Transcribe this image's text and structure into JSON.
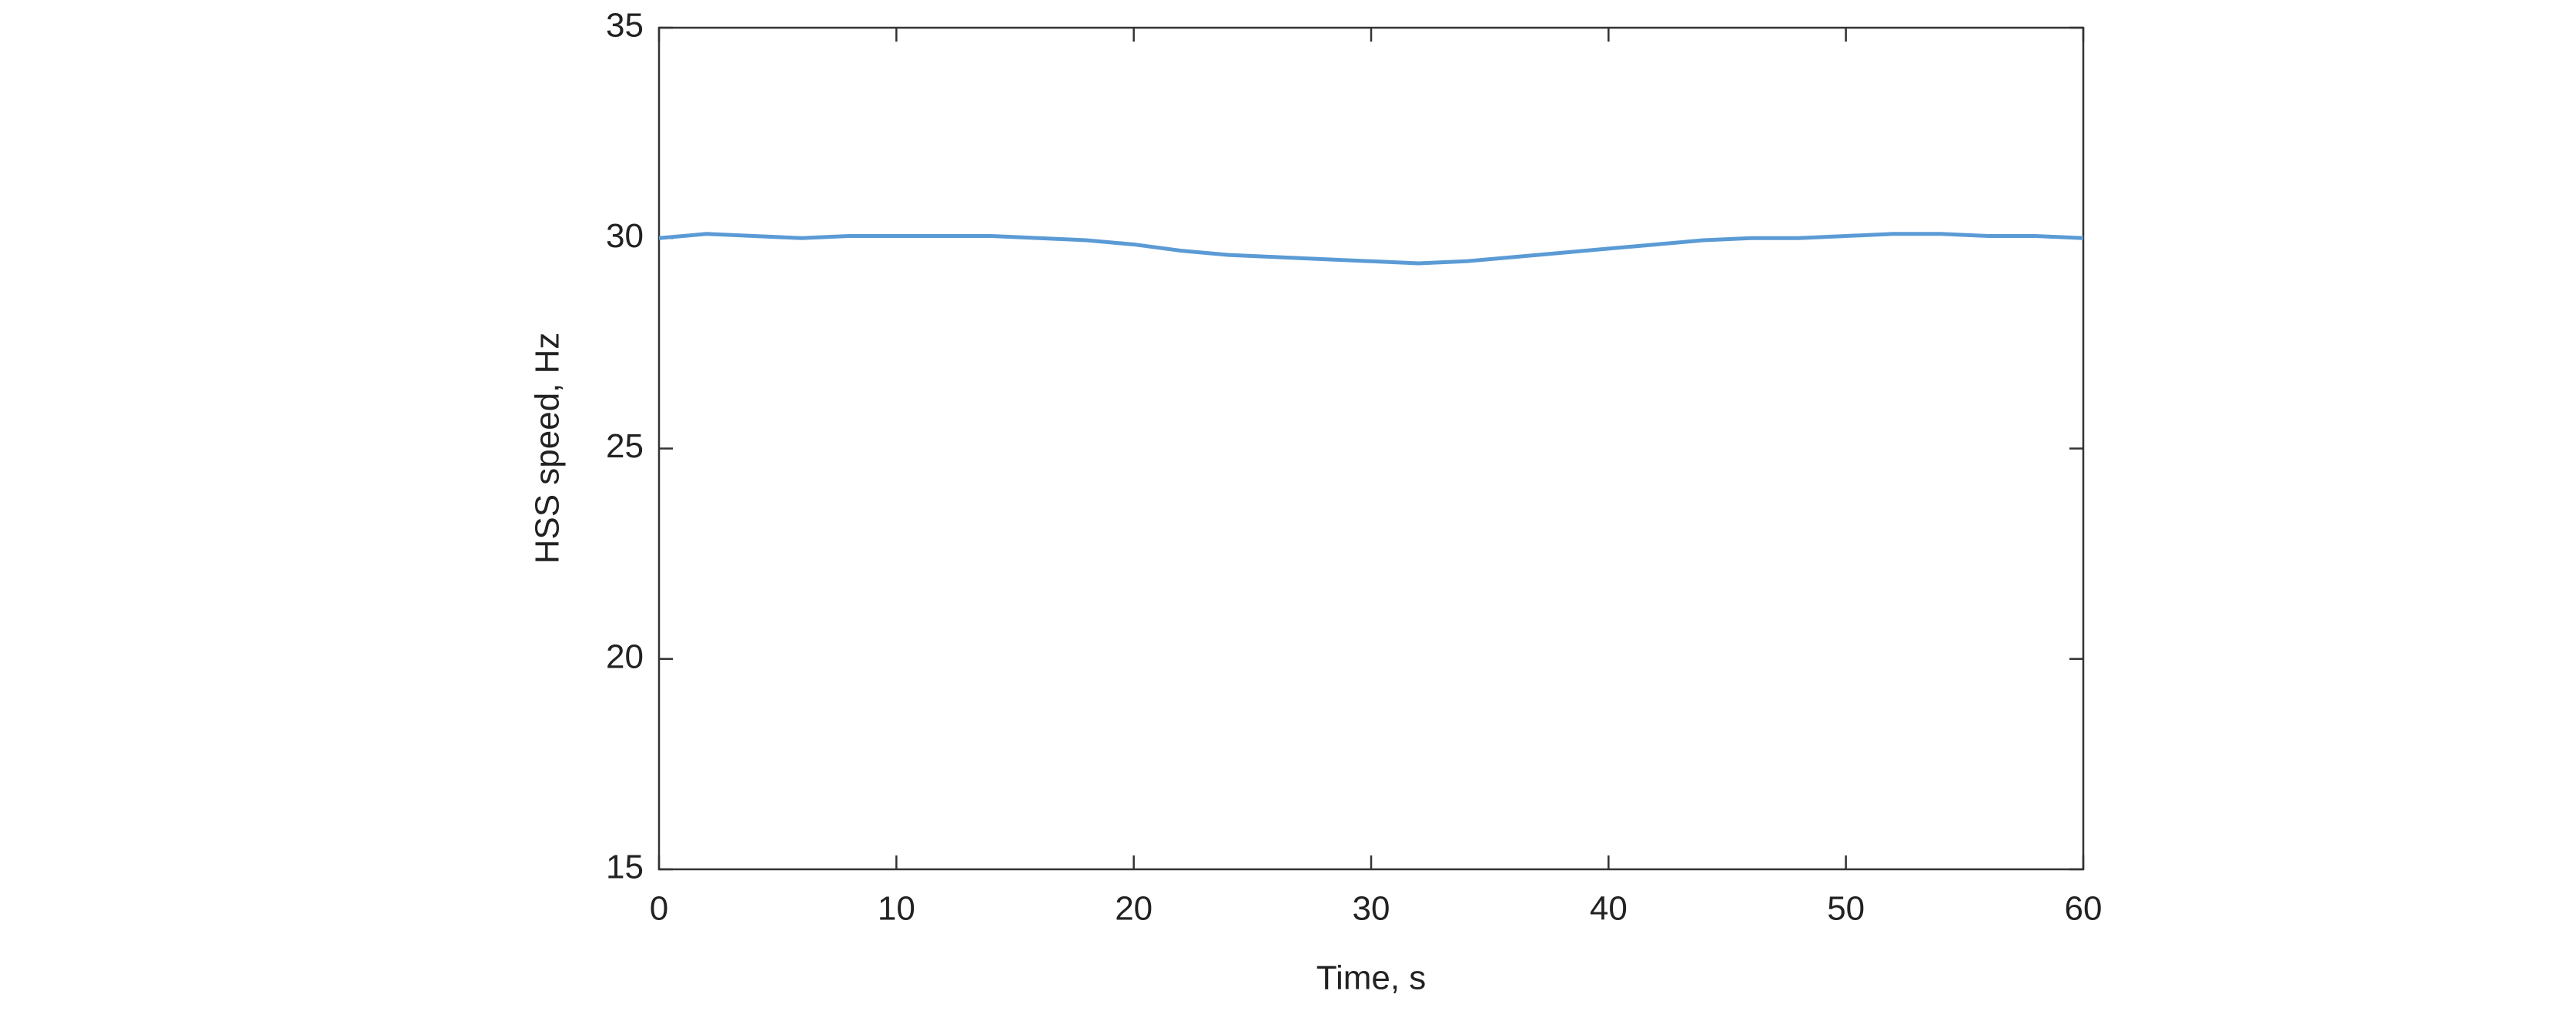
{
  "chart_data": {
    "type": "line",
    "x_label": "Time, s",
    "y_label": "HSS speed, Hz",
    "x": [
      0,
      2,
      4,
      6,
      8,
      10,
      12,
      14,
      16,
      18,
      20,
      22,
      24,
      26,
      28,
      30,
      32,
      34,
      36,
      38,
      40,
      42,
      44,
      46,
      48,
      50,
      52,
      54,
      56,
      58,
      60
    ],
    "series": [
      {
        "color": "#5b9bd5",
        "values": [
          30.0,
          30.1,
          30.05,
          30.0,
          30.05,
          30.05,
          30.05,
          30.05,
          30.0,
          29.95,
          29.85,
          29.7,
          29.6,
          29.55,
          29.5,
          29.45,
          29.4,
          29.45,
          29.55,
          29.65,
          29.75,
          29.85,
          29.95,
          30.0,
          30.0,
          30.05,
          30.1,
          30.1,
          30.05,
          30.05,
          30.0
        ]
      }
    ],
    "xlim": [
      0,
      60
    ],
    "xticks": [
      0,
      10,
      20,
      30,
      40,
      50,
      60
    ],
    "ylim": [
      15,
      35
    ],
    "yticks": [
      15,
      20,
      25,
      30,
      35
    ]
  }
}
